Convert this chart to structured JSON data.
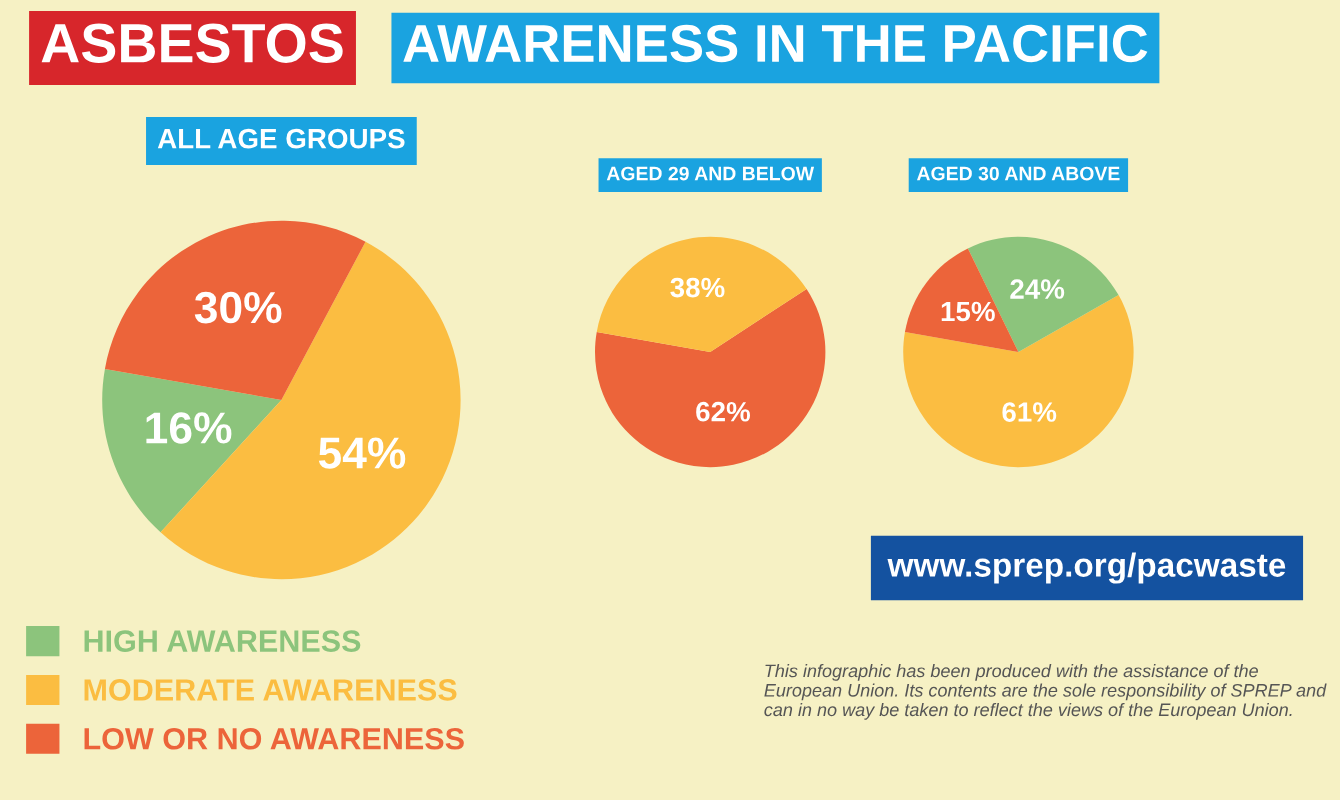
{
  "chart_data": [
    {
      "type": "pie",
      "title": "ALL AGE GROUPS",
      "categories": [
        "HIGH AWARENESS",
        "MODERATE AWARENESS",
        "LOW OR NO AWARENESS"
      ],
      "values": [
        16,
        54,
        30
      ],
      "colors": [
        "#8cc47c",
        "#fbbd41",
        "#ec643a"
      ],
      "value_labels": [
        "16%",
        "54%",
        "30%"
      ],
      "legend": "bottom left",
      "annotations": [
        "ASBESTOS",
        "AWARENESS IN THE PACIFIC"
      ]
    },
    {
      "type": "pie",
      "title": "AGED 29 AND BELOW",
      "categories": [
        null,
        null
      ],
      "values": [
        62,
        38
      ],
      "colors": [
        "#ec643a",
        "#fbbd41"
      ],
      "value_labels": [
        "62%",
        "38%"
      ]
    },
    {
      "type": "pie",
      "title": "AGED 30 AND ABOVE",
      "categories": [
        null,
        null,
        null
      ],
      "values": [
        61,
        24,
        15
      ],
      "colors": [
        "#fbbd41",
        "#8cc47c",
        "#ec643a"
      ],
      "value_labels": [
        "61%",
        "24%",
        "15%"
      ],
      "annotations": [
        "www.sprep.org/pacwaste",
        "This infographic has been produced with the assistance of the European Union. Its contents are the sole responsibility of SPREP and can in no way be taken to reflect the views of the European Union."
      ]
    }
  ]
}
